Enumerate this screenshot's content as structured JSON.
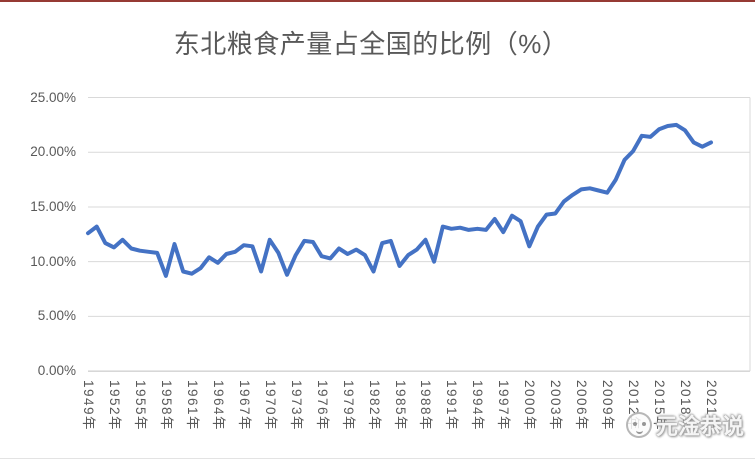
{
  "title": "东北粮食产量占全国的比例（%）",
  "watermark": {
    "text": "元淦恭说"
  },
  "colors": {
    "line": "#4472C4",
    "gridline": "#D9D9D9",
    "axis_line": "#BFBFBF",
    "text": "#595959",
    "top_bar": "#963A34"
  },
  "chart_data": {
    "type": "line",
    "title": "东北粮食产量占全国的比例（%）",
    "legend": "none",
    "grid": "horizontal",
    "ylim": [
      0,
      25
    ],
    "y_ticks": [
      "0.00%",
      "5.00%",
      "10.00%",
      "15.00%",
      "20.00%",
      "25.00%"
    ],
    "x_tick_labels": [
      "1949年",
      "1952年",
      "1955年",
      "1958年",
      "1961年",
      "1964年",
      "1967年",
      "1970年",
      "1973年",
      "1976年",
      "1979年",
      "1982年",
      "1985年",
      "1988年",
      "1991年",
      "1994年",
      "1997年",
      "2000年",
      "2003年",
      "2006年",
      "2009年",
      "2012年",
      "2015年",
      "2018年",
      "2021年"
    ],
    "x": [
      1949,
      1950,
      1951,
      1952,
      1953,
      1954,
      1955,
      1956,
      1957,
      1958,
      1959,
      1960,
      1961,
      1962,
      1963,
      1964,
      1965,
      1966,
      1967,
      1968,
      1969,
      1970,
      1971,
      1972,
      1973,
      1974,
      1975,
      1976,
      1977,
      1978,
      1979,
      1980,
      1981,
      1982,
      1983,
      1984,
      1985,
      1986,
      1987,
      1988,
      1989,
      1990,
      1991,
      1992,
      1993,
      1994,
      1995,
      1996,
      1997,
      1998,
      1999,
      2000,
      2001,
      2002,
      2003,
      2004,
      2005,
      2006,
      2007,
      2008,
      2009,
      2010,
      2011,
      2012,
      2013,
      2014,
      2015,
      2016,
      2017,
      2018,
      2019,
      2020,
      2021
    ],
    "values": [
      12.6,
      13.2,
      11.7,
      11.3,
      12.0,
      11.2,
      11.0,
      10.9,
      10.8,
      8.7,
      11.6,
      9.1,
      8.9,
      9.4,
      10.4,
      9.9,
      10.7,
      10.9,
      11.5,
      11.4,
      9.1,
      12.0,
      10.8,
      8.8,
      10.6,
      11.9,
      11.8,
      10.5,
      10.3,
      11.2,
      10.7,
      11.1,
      10.6,
      9.1,
      11.7,
      11.9,
      9.6,
      10.6,
      11.1,
      12.0,
      10.0,
      13.2,
      13.0,
      13.1,
      12.9,
      13.0,
      12.9,
      13.9,
      12.7,
      14.2,
      13.7,
      11.4,
      13.2,
      14.3,
      14.4,
      15.5,
      16.1,
      16.6,
      16.7,
      16.5,
      16.3,
      17.5,
      19.3,
      20.1,
      21.5,
      21.4,
      22.1,
      22.4,
      22.5,
      22.0,
      20.9,
      20.5,
      20.9
    ]
  }
}
